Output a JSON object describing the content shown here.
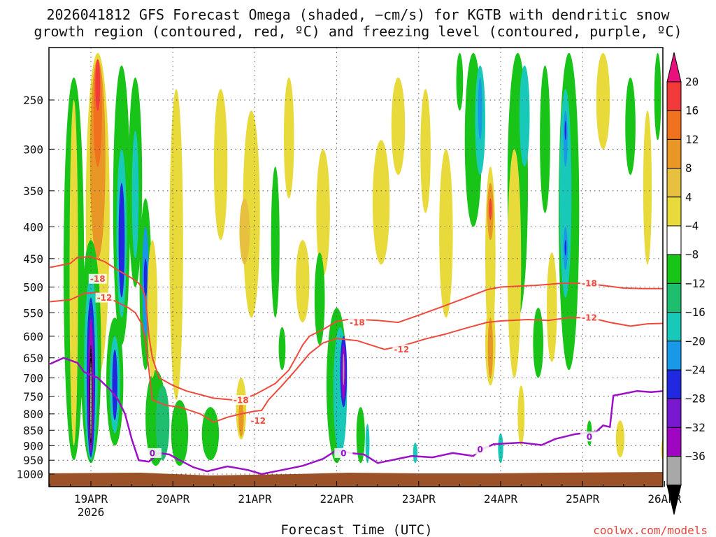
{
  "title_line1": "2026041812 GFS Forecast Omega (shaded, −cm/s) for KGTB with dendritic snow",
  "title_line2": "growth region (contoured, red, ºC) and freezing level (contoured, purple, ºC)",
  "xlabel": "Forecast Time (UTC)",
  "credit": "coolwx.com/models",
  "colors": {
    "dgz": "#f04a3c",
    "freezing": "#9b11c8",
    "ground": "#9b5228",
    "grid": "#555555"
  },
  "chart_data": {
    "type": "heatmap",
    "title": "2026041812 GFS Forecast Omega (shaded, −cm/s) for KGTB with dendritic snow growth region (contoured, red, ºC) and freezing level (contoured, purple, ºC)",
    "xlabel": "Forecast Time (UTC)",
    "ylabel": "",
    "x_ticks": [
      {
        "label": "19APR",
        "sub": "2026",
        "t": 0
      },
      {
        "label": "20APR",
        "sub": "",
        "t": 24
      },
      {
        "label": "21APR",
        "sub": "",
        "t": 48
      },
      {
        "label": "22APR",
        "sub": "",
        "t": 72
      },
      {
        "label": "23APR",
        "sub": "",
        "t": 96
      },
      {
        "label": "24APR",
        "sub": "",
        "t": 120
      },
      {
        "label": "25APR",
        "sub": "",
        "t": 144
      },
      {
        "label": "26APR",
        "sub": "",
        "t": 168
      }
    ],
    "xlim_hours": [
      -12,
      168
    ],
    "y_ticks": [
      250,
      300,
      350,
      400,
      450,
      500,
      550,
      600,
      650,
      700,
      750,
      800,
      850,
      900,
      950,
      1000
    ],
    "ylim_hPa": [
      200,
      1015
    ],
    "y_scale": "log-pressure",
    "grid": true,
    "colorbar": {
      "labels": [
        "20",
        "16",
        "12",
        "8",
        "4",
        "−4",
        "−8",
        "−12",
        "−16",
        "−20",
        "−24",
        "−28",
        "−32",
        "−36"
      ],
      "colors": [
        "#e8107c",
        "#f23a3a",
        "#f0721e",
        "#e89626",
        "#e8c040",
        "#e8da3a",
        "#ffffff",
        "#18c418",
        "#1ebe6e",
        "#18c8b8",
        "#1a98e8",
        "#2028e0",
        "#7818d0",
        "#9e06c2",
        "#a8a8a8",
        "#000000"
      ]
    },
    "contours": [
      {
        "name": "dgz_-18",
        "label": "-18",
        "color": "red",
        "label_points": [
          [
            2,
            485
          ],
          [
            78,
            570
          ],
          [
            44,
            760
          ],
          [
            146,
            493
          ]
        ],
        "points": [
          [
            -12,
            465
          ],
          [
            -6,
            458
          ],
          [
            -4,
            448
          ],
          [
            0,
            447
          ],
          [
            4,
            455
          ],
          [
            8,
            470
          ],
          [
            12,
            484
          ],
          [
            14,
            493
          ],
          [
            15,
            502
          ],
          [
            16,
            520
          ],
          [
            16.5,
            560
          ],
          [
            17,
            600
          ],
          [
            18,
            650
          ],
          [
            20,
            700
          ],
          [
            24,
            720
          ],
          [
            28,
            735
          ],
          [
            36,
            755
          ],
          [
            42,
            760
          ],
          [
            46,
            752
          ],
          [
            48,
            745
          ],
          [
            54,
            715
          ],
          [
            58,
            680
          ],
          [
            60,
            650
          ],
          [
            62,
            620
          ],
          [
            64,
            600
          ],
          [
            68,
            585
          ],
          [
            72,
            568
          ],
          [
            76,
            563
          ],
          [
            84,
            566
          ],
          [
            90,
            570
          ],
          [
            96,
            555
          ],
          [
            104,
            535
          ],
          [
            110,
            520
          ],
          [
            116,
            505
          ],
          [
            120,
            500
          ],
          [
            130,
            497
          ],
          [
            138,
            493
          ],
          [
            144,
            493
          ],
          [
            150,
            497
          ],
          [
            156,
            502
          ],
          [
            162,
            503
          ],
          [
            168,
            503
          ]
        ]
      },
      {
        "name": "dgz_-12",
        "label": "-12",
        "color": "red",
        "label_points": [
          [
            4,
            520
          ],
          [
            91,
            630
          ],
          [
            49,
            820
          ],
          [
            146,
            560
          ]
        ],
        "points": [
          [
            -12,
            528
          ],
          [
            -6,
            524
          ],
          [
            -2,
            512
          ],
          [
            2,
            510
          ],
          [
            5,
            520
          ],
          [
            8,
            530
          ],
          [
            11,
            540
          ],
          [
            13,
            550
          ],
          [
            15,
            575
          ],
          [
            16,
            610
          ],
          [
            17,
            680
          ],
          [
            18,
            760
          ],
          [
            22,
            775
          ],
          [
            26,
            780
          ],
          [
            32,
            800
          ],
          [
            36,
            825
          ],
          [
            40,
            810
          ],
          [
            44,
            800
          ],
          [
            48,
            792
          ],
          [
            50,
            790
          ],
          [
            52,
            760
          ],
          [
            56,
            720
          ],
          [
            60,
            680
          ],
          [
            64,
            640
          ],
          [
            68,
            615
          ],
          [
            72,
            605
          ],
          [
            78,
            610
          ],
          [
            86,
            630
          ],
          [
            92,
            620
          ],
          [
            98,
            606
          ],
          [
            104,
            595
          ],
          [
            110,
            582
          ],
          [
            116,
            570
          ],
          [
            120,
            567
          ],
          [
            128,
            564
          ],
          [
            134,
            566
          ],
          [
            140,
            560
          ],
          [
            146,
            560
          ],
          [
            152,
            570
          ],
          [
            158,
            578
          ],
          [
            163,
            573
          ],
          [
            168,
            572
          ]
        ]
      },
      {
        "name": "freezing_0",
        "label": "0",
        "color": "purple",
        "label_points": [
          [
            18,
            925
          ],
          [
            74,
            925
          ],
          [
            114,
            912
          ],
          [
            146,
            870
          ]
        ],
        "points": [
          [
            -12,
            665
          ],
          [
            -8,
            650
          ],
          [
            -4,
            662
          ],
          [
            -2,
            685
          ],
          [
            2,
            700
          ],
          [
            6,
            735
          ],
          [
            8,
            760
          ],
          [
            10,
            800
          ],
          [
            12,
            880
          ],
          [
            14,
            950
          ],
          [
            17,
            955
          ],
          [
            20,
            925
          ],
          [
            23,
            930
          ],
          [
            26,
            950
          ],
          [
            30,
            975
          ],
          [
            34,
            990
          ],
          [
            40,
            972
          ],
          [
            46,
            985
          ],
          [
            50,
            1000
          ],
          [
            56,
            985
          ],
          [
            62,
            970
          ],
          [
            68,
            945
          ],
          [
            72,
            915
          ],
          [
            76,
            925
          ],
          [
            80,
            930
          ],
          [
            84,
            960
          ],
          [
            88,
            950
          ],
          [
            94,
            935
          ],
          [
            100,
            940
          ],
          [
            106,
            925
          ],
          [
            112,
            935
          ],
          [
            114,
            915
          ],
          [
            118,
            895
          ],
          [
            126,
            890
          ],
          [
            132,
            898
          ],
          [
            136,
            878
          ],
          [
            142,
            862
          ],
          [
            148,
            855
          ],
          [
            150,
            835
          ],
          [
            152,
            840
          ],
          [
            153,
            748
          ],
          [
            160,
            735
          ],
          [
            164,
            738
          ],
          [
            168,
            735
          ]
        ]
      }
    ],
    "omega_centers_cm_s": [
      {
        "t": 0,
        "p": 680,
        "min": -36
      },
      {
        "t": 2,
        "p": 270,
        "max": 20
      },
      {
        "t": 74,
        "p": 660,
        "min": -32
      },
      {
        "t": 139,
        "p": 430,
        "min": -20
      },
      {
        "t": 139,
        "p": 280,
        "min": -20
      },
      {
        "t": 116,
        "p": 370,
        "max": 16
      },
      {
        "t": 116,
        "p": 600,
        "max": 12
      }
    ]
  }
}
